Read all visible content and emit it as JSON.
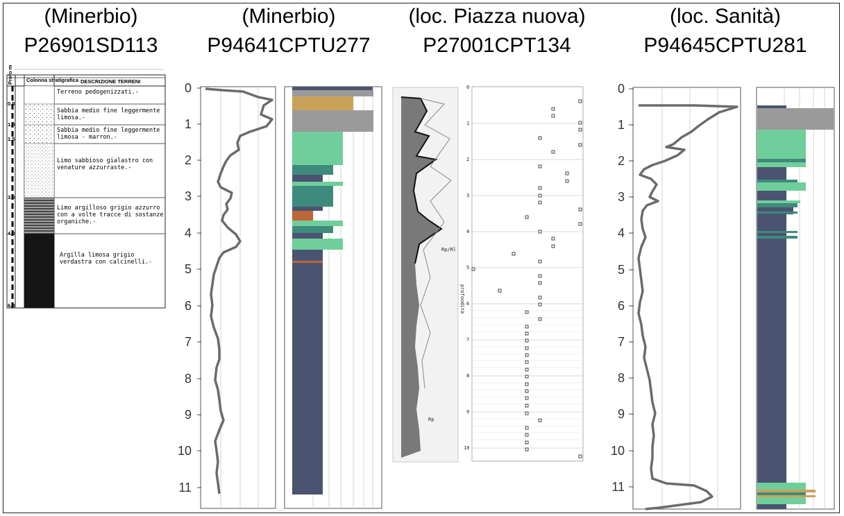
{
  "titles": [
    {
      "line1": "(Minerbio)",
      "line2": "P26901SD113"
    },
    {
      "line1": "(Minerbio)",
      "line2": "P94641CPTU277"
    },
    {
      "line1": "(loc. Piazza nuova)",
      "line2": "P27001CPT134"
    },
    {
      "line1": "(loc. Sanità)",
      "line2": "P94645CPTU281"
    }
  ],
  "borehole_log": {
    "header_depth": "Profo m",
    "header_column": "Colonna stratigrafica",
    "header_description": "DESCRIZIONE TERRENI",
    "depth_marks": [
      "0.5",
      "1.0",
      "1.5",
      "3.0",
      "4.0",
      "6.0"
    ],
    "layers": [
      "Terreno pedogenizzati.-",
      "Sabbia medio fine leggermente limosa.-",
      "Sabbia medio fine leggermente limosa - marron.-",
      "Limo sabbioso gialastro con venature azzurraste.-",
      "Limo argilloso grigio azzurro con a volte tracce di sostanze organiche.-",
      "Argilla limosa grigio verdastra con calcinelli.-"
    ]
  },
  "depth_axis_labels": [
    "0",
    "1",
    "2",
    "3",
    "4",
    "5",
    "6",
    "7",
    "8",
    "9",
    "10",
    "11"
  ],
  "cpt_axis_labels": [
    "0",
    "1",
    "2",
    "3",
    "4",
    "5",
    "6",
    "7",
    "8",
    "9",
    "10"
  ],
  "cpt_labels": {
    "rf": "Rp/Rl",
    "qc": "Rp",
    "axis": "profondità"
  },
  "colors": {
    "clay": "#4a5470",
    "silt_green": "#6fcf9a",
    "silt_teal": "#3e8a7c",
    "sand": "#c9a25a",
    "fill": "#9a9a9a",
    "peat": "#c0653a",
    "curve": "#6b6b6b"
  }
}
